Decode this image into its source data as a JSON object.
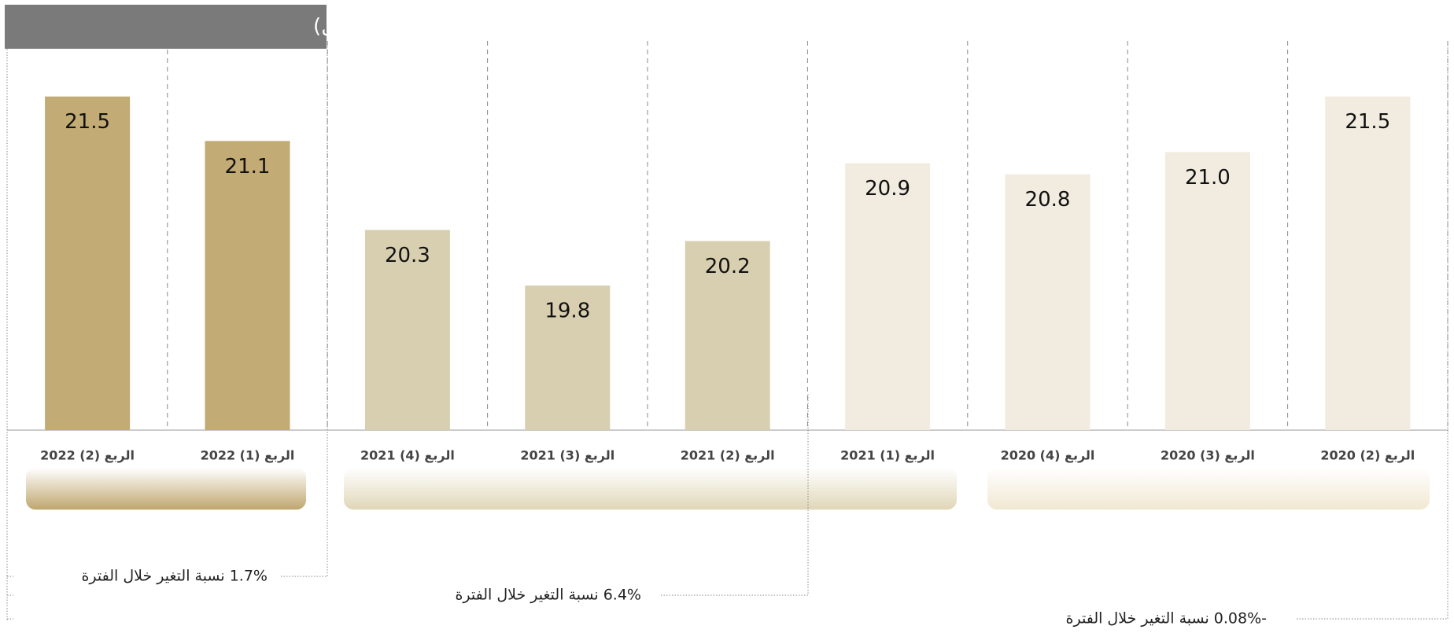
{
  "chart_data": {
    "type": "bar",
    "title": "عدد العاملين (مليون عامل)",
    "categories": [
      "الربع (2) 2020",
      "الربع (3) 2020",
      "الربع (4) 2020",
      "الربع (1) 2021",
      "الربع (2) 2021",
      "الربع (3) 2021",
      "الربع (4) 2021",
      "الربع (1) 2022",
      "الربع (2) 2022"
    ],
    "values": [
      21.5,
      21.0,
      20.8,
      20.9,
      20.2,
      19.8,
      20.3,
      21.1,
      21.5
    ],
    "value_labels": [
      "21.5",
      "21.0",
      "20.8",
      "20.9",
      "20.2",
      "19.8",
      "20.3",
      "21.1",
      "21.5"
    ],
    "colors": [
      "#f2ebdf",
      "#f2ebdf",
      "#f2ebdf",
      "#f2ebdf",
      "#d8cfb0",
      "#d8cfb0",
      "#d8cfb0",
      "#c2ab74",
      "#c2ab74"
    ],
    "ylim": [
      18.5,
      22
    ],
    "annotations": [
      "1.7% نسبة التغير خلال الفترة",
      "6.4% نسبة التغير خلال الفترة",
      "-0.08% نسبة التغير خلال الفترة"
    ]
  }
}
